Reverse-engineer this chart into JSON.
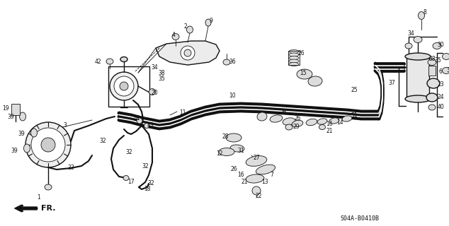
{
  "bg_color": "#ffffff",
  "fig_width": 6.34,
  "fig_height": 3.2,
  "dpi": 100,
  "part_code": "S04A-B0410B",
  "direction_label": "FR.",
  "line_color": "#111111"
}
